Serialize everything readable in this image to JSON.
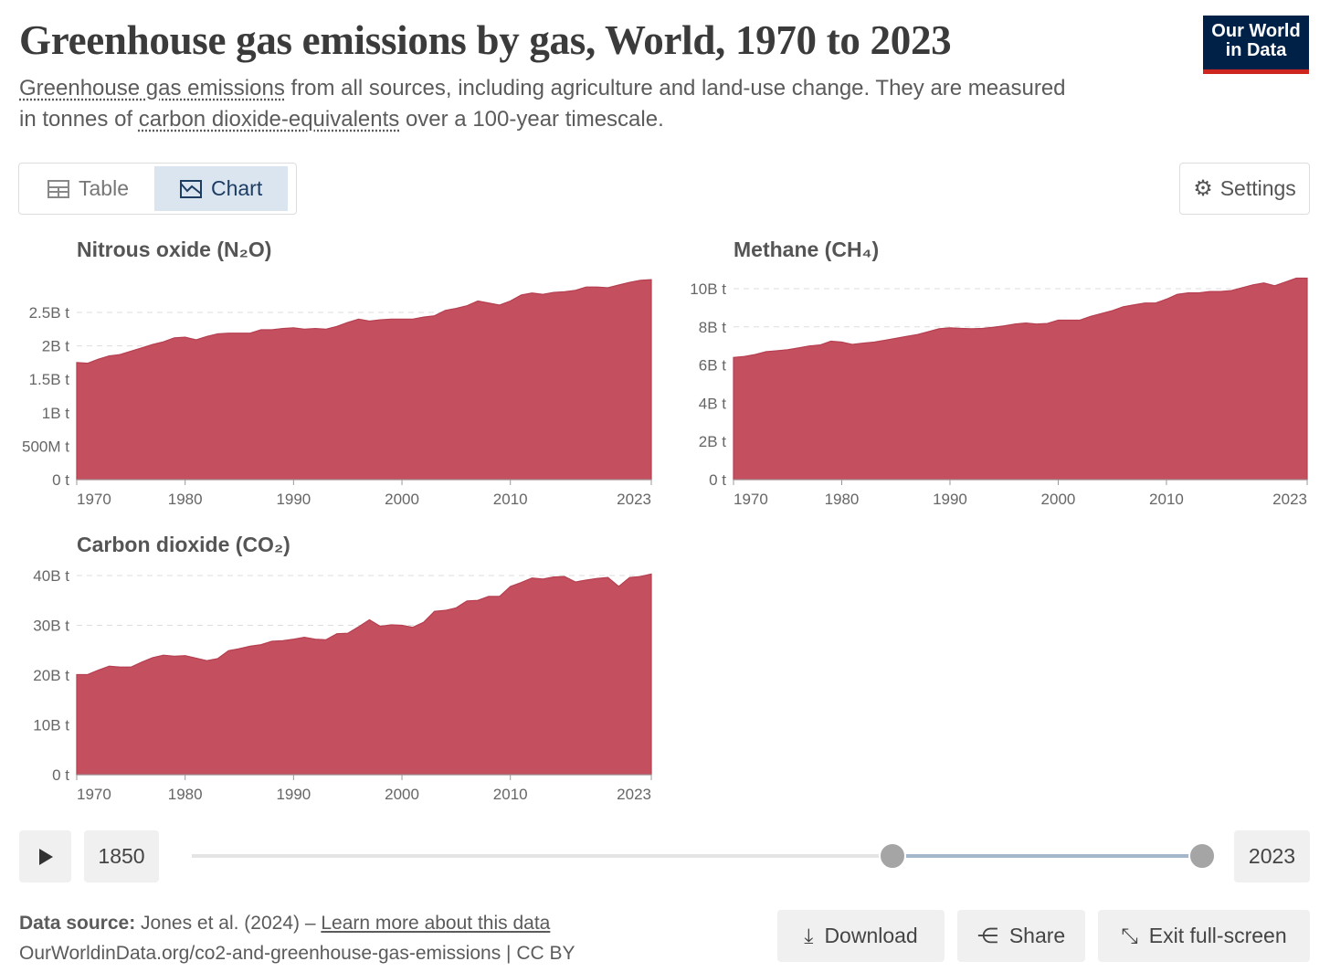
{
  "header": {
    "title": "Greenhouse gas emissions by gas, World, 1970 to 2023",
    "subtitle_link1": "Greenhouse gas emissions",
    "subtitle_text1": " from all sources, including agriculture and land-use change. They are measured in tonnes of ",
    "subtitle_link2": "carbon dioxide-equivalents",
    "subtitle_text2": " over a 100-year timescale.",
    "logo": "Our World in Data"
  },
  "tabs": [
    {
      "label": "Table",
      "icon": "table-icon"
    },
    {
      "label": "Chart",
      "icon": "chart-icon",
      "active": true
    }
  ],
  "settings_label": "Settings",
  "colors": {
    "area": "#c4505f",
    "logo_bg": "#002147",
    "logo_accent": "#ce261e"
  },
  "chart_data": [
    {
      "type": "area",
      "title": "Nitrous oxide (N₂O)",
      "xlim": [
        1970,
        2023
      ],
      "x_ticks": [
        "1970",
        "1980",
        "1990",
        "2000",
        "2010",
        "2023"
      ],
      "y_ticks": [
        "0 t",
        "500M t",
        "1B t",
        "1.5B t",
        "2B t",
        "2.5B t"
      ],
      "y_tick_values": [
        0,
        0.5,
        1,
        1.5,
        2,
        2.5
      ],
      "unit": "billion tonnes",
      "grid": true,
      "values": [
        1.75,
        1.74,
        1.8,
        1.85,
        1.87,
        1.92,
        1.97,
        2.02,
        2.06,
        2.12,
        2.13,
        2.09,
        2.14,
        2.18,
        2.19,
        2.19,
        2.19,
        2.24,
        2.24,
        2.26,
        2.27,
        2.25,
        2.26,
        2.25,
        2.29,
        2.35,
        2.4,
        2.37,
        2.39,
        2.4,
        2.4,
        2.4,
        2.43,
        2.45,
        2.53,
        2.56,
        2.6,
        2.67,
        2.64,
        2.61,
        2.67,
        2.76,
        2.79,
        2.77,
        2.8,
        2.81,
        2.83,
        2.88,
        2.88,
        2.87,
        2.91,
        2.95,
        2.98,
        2.99
      ]
    },
    {
      "type": "area",
      "title": "Methane (CH₄)",
      "xlim": [
        1970,
        2023
      ],
      "x_ticks": [
        "1970",
        "1980",
        "1990",
        "2000",
        "2010",
        "2023"
      ],
      "y_ticks": [
        "0 t",
        "2B t",
        "4B t",
        "6B t",
        "8B t",
        "10B t"
      ],
      "y_tick_values": [
        0,
        2,
        4,
        6,
        8,
        10
      ],
      "unit": "billion tonnes",
      "grid": true,
      "values": [
        6.4,
        6.45,
        6.55,
        6.7,
        6.75,
        6.8,
        6.9,
        7.0,
        7.05,
        7.25,
        7.2,
        7.08,
        7.15,
        7.2,
        7.3,
        7.4,
        7.5,
        7.6,
        7.75,
        7.9,
        7.95,
        7.92,
        7.9,
        7.92,
        7.98,
        8.05,
        8.15,
        8.2,
        8.15,
        8.18,
        8.35,
        8.35,
        8.35,
        8.55,
        8.7,
        8.85,
        9.05,
        9.15,
        9.25,
        9.25,
        9.45,
        9.7,
        9.78,
        9.78,
        9.85,
        9.85,
        9.9,
        10.05,
        10.2,
        10.3,
        10.15,
        10.35,
        10.55,
        10.55
      ]
    },
    {
      "type": "area",
      "title": "Carbon dioxide (CO₂)",
      "xlim": [
        1970,
        2023
      ],
      "x_ticks": [
        "1970",
        "1980",
        "1990",
        "2000",
        "2010",
        "2023"
      ],
      "y_ticks": [
        "0 t",
        "10B t",
        "20B t",
        "30B t",
        "40B t"
      ],
      "y_tick_values": [
        0,
        10,
        20,
        30,
        40
      ],
      "unit": "billion tonnes",
      "grid": true,
      "values": [
        20.1,
        20.1,
        21.0,
        21.8,
        21.6,
        21.6,
        22.6,
        23.5,
        24.0,
        23.8,
        23.9,
        23.4,
        22.9,
        23.3,
        24.9,
        25.3,
        25.8,
        26.1,
        26.8,
        26.9,
        27.2,
        27.6,
        27.2,
        27.1,
        28.3,
        28.4,
        29.7,
        31.1,
        29.8,
        30.1,
        30.0,
        29.6,
        30.6,
        32.8,
        33.0,
        33.5,
        34.9,
        35.0,
        35.8,
        35.8,
        37.8,
        38.6,
        39.5,
        39.3,
        39.7,
        39.8,
        38.7,
        39.1,
        39.4,
        39.6,
        37.8,
        39.6,
        39.8,
        40.3
      ]
    }
  ],
  "timeline": {
    "start_label": "1850",
    "end_label": "2023",
    "min": 1850,
    "max": 2023,
    "start": 1970,
    "end": 2023
  },
  "footer": {
    "source_label": "Data source:",
    "source_text": " Jones et al. (2024) – ",
    "learn_more": "Learn more about this data",
    "url": "OurWorldinData.org/co2-and-greenhouse-gas-emissions | CC BY",
    "download": "Download",
    "share": "Share",
    "exit": "Exit full-screen"
  }
}
